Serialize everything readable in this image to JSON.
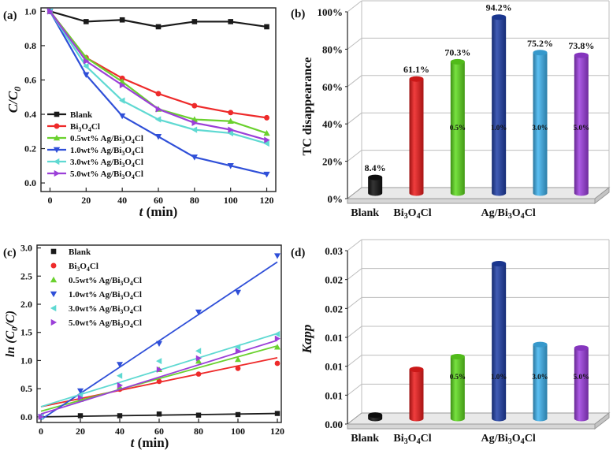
{
  "colors": {
    "blank": "#1a1a1a",
    "bi4": "#ee2a2a",
    "ag05": "#6ad12e",
    "ag10": "#2f4fd8",
    "ag30": "#5fd9d2",
    "ag50": "#9b3fd8",
    "bar_blank": "#111111",
    "bar_bi4": "#ee1c1c",
    "bar_ag05": "#5fdc1e",
    "bar_ag10": "#1f3fa8",
    "bar_ag30": "#3fb4f0",
    "bar_ag50": "#9d3ee0",
    "floor": "#e9e9e9",
    "grid": "#bdbdbd"
  },
  "chart_data": [
    {
      "panel": "(a)",
      "type": "line",
      "xlabel_t": "t",
      "xlabel_rest": " (min)",
      "ylabel": "C/C0",
      "ylabel_main": "C/C",
      "ylabel_sub": "0",
      "xlim": [
        -5,
        125
      ],
      "ylim": [
        -0.05,
        1.02
      ],
      "xticks": [
        0,
        20,
        40,
        60,
        80,
        100,
        120
      ],
      "yticks": [
        0.0,
        0.2,
        0.4,
        0.6,
        0.8,
        1.0
      ],
      "ytick_labels": [
        "0.0",
        "0.2",
        "0.4",
        "0.6",
        "0.8",
        "1.0"
      ],
      "x": [
        0,
        20,
        40,
        60,
        80,
        100,
        120
      ],
      "series": [
        {
          "name": "Blank",
          "key": "blank",
          "marker": "square",
          "values": [
            1.0,
            0.94,
            0.95,
            0.91,
            0.94,
            0.94,
            0.91
          ]
        },
        {
          "name": "Bi3O4Cl",
          "key": "bi4",
          "marker": "circle",
          "values": [
            1.0,
            0.73,
            0.61,
            0.52,
            0.45,
            0.41,
            0.38
          ]
        },
        {
          "name": "0.5wt% Ag/Bi3O4Cl",
          "key": "ag05",
          "marker": "triangle-up",
          "values": [
            1.0,
            0.73,
            0.59,
            0.43,
            0.37,
            0.36,
            0.29
          ]
        },
        {
          "name": "1.0wt% Ag/Bi3O4Cl",
          "key": "ag10",
          "marker": "triangle-down",
          "values": [
            1.0,
            0.63,
            0.39,
            0.27,
            0.15,
            0.1,
            0.05
          ]
        },
        {
          "name": "3.0wt% Ag/Bi3O4Cl",
          "key": "ag30",
          "marker": "triangle-left",
          "values": [
            1.0,
            0.68,
            0.48,
            0.37,
            0.31,
            0.29,
            0.23
          ]
        },
        {
          "name": "5.0wt% Ag/Bi3O4Cl",
          "key": "ag50",
          "marker": "triangle-right",
          "values": [
            1.0,
            0.71,
            0.57,
            0.43,
            0.35,
            0.31,
            0.25
          ]
        }
      ],
      "legend": [
        {
          "pre": "Blank",
          "sub": "",
          "post": ""
        },
        {
          "pre": "Bi",
          "sub1": "3",
          "mid": "O",
          "sub2": "4",
          "post": "Cl"
        },
        {
          "pre": "0.5wt% Ag/Bi",
          "sub1": "3",
          "mid": "O",
          "sub2": "4",
          "post": "Cl"
        },
        {
          "pre": "1.0wt% Ag/Bi",
          "sub1": "3",
          "mid": "O",
          "sub2": "4",
          "post": "Cl"
        },
        {
          "pre": "3.0wt% Ag/Bi",
          "sub1": "3",
          "mid": "O",
          "sub2": "4",
          "post": "Cl"
        },
        {
          "pre": "5.0wt% Ag/Bi",
          "sub1": "3",
          "mid": "O",
          "sub2": "4",
          "post": "Cl"
        }
      ]
    },
    {
      "panel": "(b)",
      "type": "bar",
      "ylabel": "TC disappearance",
      "ylim": [
        0,
        100
      ],
      "yticks": [
        0,
        20,
        40,
        60,
        80,
        100
      ],
      "ytick_labels": [
        "0%",
        "20%",
        "40%",
        "60%",
        "80%",
        "100%"
      ],
      "values": [
        8.4,
        61.1,
        70.3,
        94.2,
        75.2,
        73.8
      ],
      "value_labels": [
        "8.4%",
        "61.1%",
        "70.3%",
        "94.2%",
        "75.2%",
        "73.8%"
      ],
      "bar_inner_labels": [
        "",
        "",
        "0.5%",
        "1.0%",
        "3.0%",
        "5.0%"
      ],
      "keys": [
        "bar_blank",
        "bar_bi4",
        "bar_ag05",
        "bar_ag10",
        "bar_ag30",
        "bar_ag50"
      ],
      "category_labels": {
        "blank": "Blank",
        "bi": "Bi3O4Cl",
        "ag": "Ag/Bi3O4Cl"
      }
    },
    {
      "panel": "(c)",
      "type": "scatter",
      "xlabel_t": "t",
      "xlabel_rest": " (min)",
      "ylabel": "ln (C0/C)",
      "xlim": [
        -2,
        122
      ],
      "ylim": [
        -0.1,
        3.05
      ],
      "xticks": [
        0,
        20,
        40,
        60,
        80,
        100,
        120
      ],
      "yticks": [
        0.0,
        0.5,
        1.0,
        1.5,
        2.0,
        2.5,
        3.0
      ],
      "ytick_labels": [
        "0.0",
        "0.5",
        "1.0",
        "1.5",
        "2.0",
        "2.5",
        "3.0"
      ],
      "x": [
        0,
        20,
        40,
        60,
        80,
        100,
        120
      ],
      "series": [
        {
          "name": "Blank",
          "key": "blank",
          "marker": "square",
          "values": [
            0.0,
            0.02,
            0.02,
            0.05,
            0.03,
            0.04,
            0.06
          ],
          "fit": [
            0.0,
            0.06
          ]
        },
        {
          "name": "Bi3O4Cl",
          "key": "bi4",
          "marker": "circle",
          "values": [
            0.0,
            0.31,
            0.49,
            0.63,
            0.76,
            0.86,
            0.95
          ],
          "fit": [
            0.18,
            1.05
          ]
        },
        {
          "name": "0.5wt% Ag/Bi3O4Cl",
          "key": "ag05",
          "marker": "triangle-up",
          "values": [
            0.0,
            0.31,
            0.53,
            0.84,
            0.99,
            1.02,
            1.24
          ],
          "fit": [
            0.1,
            1.26
          ]
        },
        {
          "name": "1.0wt% Ag/Bi3O4Cl",
          "key": "ag10",
          "marker": "triangle-down",
          "values": [
            0.0,
            0.46,
            0.93,
            1.3,
            1.86,
            2.21,
            2.86
          ],
          "fit": [
            -0.05,
            2.75
          ]
        },
        {
          "name": "3.0wt% Ag/Bi3O4Cl",
          "key": "ag30",
          "marker": "triangle-left",
          "values": [
            0.0,
            0.39,
            0.73,
            0.99,
            1.17,
            1.24,
            1.47
          ],
          "fit": [
            0.18,
            1.48
          ]
        },
        {
          "name": "5.0wt% Ag/Bi3O4Cl",
          "key": "ag50",
          "marker": "triangle-right",
          "values": [
            0.0,
            0.34,
            0.56,
            0.84,
            1.04,
            1.17,
            1.39
          ],
          "fit": [
            0.05,
            1.36
          ]
        }
      ]
    },
    {
      "panel": "(d)",
      "type": "bar",
      "ylabel": "Kapp",
      "ylim": [
        0,
        0.03
      ],
      "yticks": [
        0,
        0.005,
        0.01,
        0.015,
        0.02,
        0.025,
        0.03
      ],
      "ytick_labels": [
        "0.00",
        "0.01",
        "0.01",
        "0.01",
        "0.02",
        "0.02",
        "0.03"
      ],
      "values": [
        0.0006,
        0.0085,
        0.0107,
        0.0268,
        0.0128,
        0.0122
      ],
      "bar_inner_labels": [
        "",
        "",
        "0.5%",
        "1.0%",
        "3.0%",
        "5.0%"
      ],
      "keys": [
        "bar_blank",
        "bar_bi4",
        "bar_ag05",
        "bar_ag10",
        "bar_ag30",
        "bar_ag50"
      ],
      "category_labels": {
        "blank": "Blank",
        "bi": "Bi3O4Cl",
        "ag": "Ag/Bi3O4Cl"
      }
    }
  ]
}
